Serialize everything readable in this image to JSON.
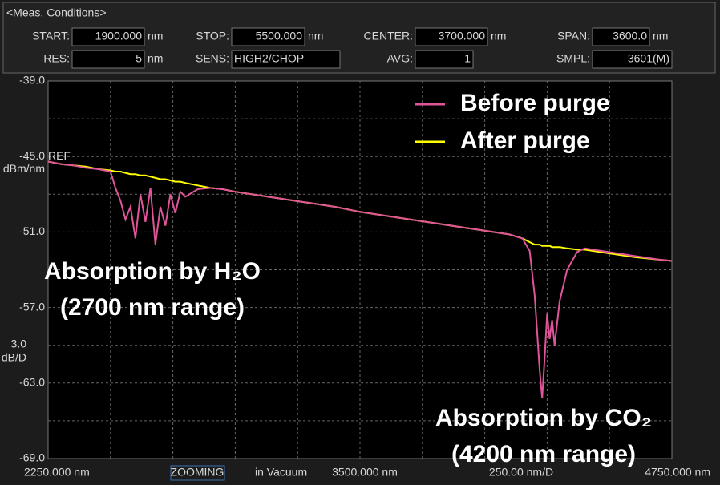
{
  "header": {
    "title": "<Meas. Conditions>",
    "fields": [
      {
        "label": "START:",
        "value": "1900.000",
        "unit": "nm"
      },
      {
        "label": "STOP:",
        "value": "5500.000",
        "unit": "nm"
      },
      {
        "label": "CENTER:",
        "value": "3700.000",
        "unit": "nm"
      },
      {
        "label": "SPAN:",
        "value": "3600.0",
        "unit": "nm"
      },
      {
        "label": "RES:",
        "value": "5",
        "unit": "nm"
      },
      {
        "label": "SENS:",
        "value": "HIGH2/CHOP"
      },
      {
        "label": "AVG:",
        "value": "1"
      },
      {
        "label": "SMPL:",
        "value": "3601(M)"
      }
    ]
  },
  "chart_data": {
    "type": "line",
    "x": [
      2250,
      2300,
      2350,
      2400,
      2450,
      2500,
      2520,
      2540,
      2560,
      2580,
      2600,
      2620,
      2640,
      2660,
      2680,
      2700,
      2720,
      2740,
      2760,
      2780,
      2800,
      2850,
      2900,
      2950,
      3000,
      3100,
      3200,
      3300,
      3400,
      3500,
      3600,
      3700,
      3800,
      3900,
      4000,
      4100,
      4150,
      4180,
      4200,
      4210,
      4220,
      4230,
      4240,
      4250,
      4260,
      4270,
      4280,
      4300,
      4330,
      4370,
      4400,
      4500,
      4600,
      4700,
      4750
    ],
    "series": [
      {
        "name": "Before purge",
        "color": "#e0559a",
        "values": [
          -45.4,
          -45.6,
          -45.7,
          -45.9,
          -46.0,
          -46.2,
          -47.5,
          -48.5,
          -50.0,
          -49.0,
          -51.5,
          -48.0,
          -50.2,
          -47.5,
          -52.0,
          -49.0,
          -50.5,
          -48.0,
          -49.5,
          -47.8,
          -48.2,
          -47.6,
          -47.5,
          -47.6,
          -47.8,
          -48.1,
          -48.4,
          -48.7,
          -49.0,
          -49.4,
          -49.7,
          -50.0,
          -50.3,
          -50.6,
          -50.9,
          -51.2,
          -51.5,
          -52.5,
          -56.0,
          -59.0,
          -62.0,
          -64.2,
          -61.0,
          -57.5,
          -59.5,
          -58.0,
          -60.0,
          -56.5,
          -54.0,
          -52.6,
          -52.3,
          -52.6,
          -52.9,
          -53.2,
          -53.3
        ]
      },
      {
        "name": "After purge",
        "color": "#ffff00",
        "values": [
          -45.4,
          -45.6,
          -45.7,
          -45.8,
          -46.0,
          -46.1,
          -46.2,
          -46.2,
          -46.3,
          -46.4,
          -46.4,
          -46.5,
          -46.5,
          -46.6,
          -46.7,
          -46.8,
          -46.8,
          -46.9,
          -47.0,
          -47.0,
          -47.1,
          -47.3,
          -47.5,
          -47.6,
          -47.8,
          -48.1,
          -48.4,
          -48.7,
          -49.0,
          -49.4,
          -49.7,
          -50.0,
          -50.3,
          -50.6,
          -50.9,
          -51.2,
          -51.5,
          -51.8,
          -52.0,
          -52.0,
          -52.0,
          -52.1,
          -52.1,
          -52.1,
          -52.1,
          -52.2,
          -52.2,
          -52.2,
          -52.3,
          -52.4,
          -52.4,
          -52.7,
          -53.0,
          -53.2,
          -53.3
        ]
      }
    ],
    "xlim": [
      2250,
      4750
    ],
    "ylim": [
      -69,
      -39
    ],
    "yticks": [
      {
        "value": -39,
        "label": "-39.0"
      },
      {
        "value": -45,
        "label": "-45.0"
      },
      {
        "value": -51,
        "label": "-51.0"
      },
      {
        "value": -57,
        "label": "-57.0"
      },
      {
        "value": -63,
        "label": "-63.0"
      },
      {
        "value": -69,
        "label": "-69.0"
      }
    ],
    "xticks": [
      {
        "value": 2250,
        "label": "2250.000 nm"
      },
      {
        "value": 3500,
        "label": "3500.000 nm"
      },
      {
        "value": 4750,
        "label": "4750.000 nm"
      }
    ],
    "ref_label": "REF",
    "y_unit": "dBm/nm",
    "y_div": {
      "value": 3,
      "label": "3.0"
    },
    "y_div_unit": "dB/D",
    "x_div": {
      "value": 250,
      "label": "250.00 nm/D"
    },
    "status": [
      "ZOOMING",
      "in Vacuum"
    ],
    "annotations": [
      "Absorption by H₂O",
      "(2700 nm range)",
      "Absorption by CO₂",
      "(4200 nm range)"
    ],
    "legend": "top-right",
    "grid": true
  }
}
